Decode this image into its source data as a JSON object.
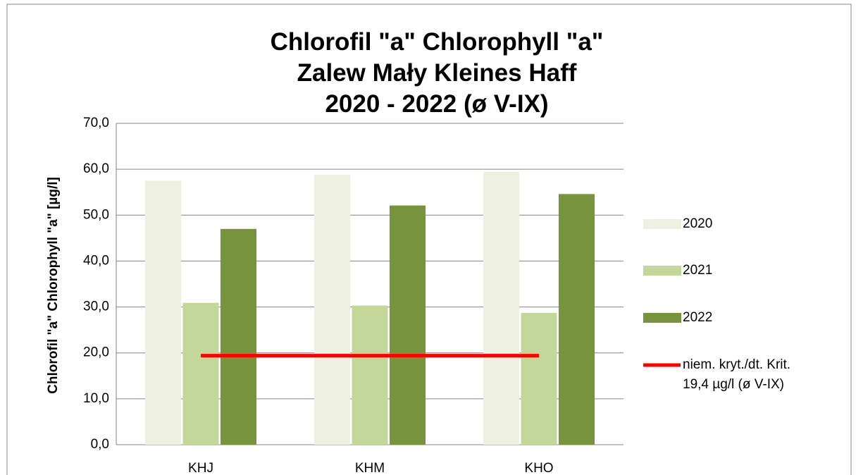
{
  "chart_data": {
    "type": "bar",
    "title": "Chlorofil \"a\"  Chlorophyll \"a\"\nZalew Mały  Kleines Haff\n2020 - 2022 (ø V-IX)",
    "y_label": "Chlorofil \"a\"  Chlorophyll \"a\" [µg/l]",
    "categories": [
      "KHJ",
      "KHM",
      "KHO"
    ],
    "series": [
      {
        "name": "2020",
        "color": "#eef0e2",
        "values": [
          57.5,
          58.8,
          59.4
        ]
      },
      {
        "name": "2021",
        "color": "#c4d79b",
        "values": [
          30.9,
          30.3,
          28.7
        ]
      },
      {
        "name": "2022",
        "color": "#77933c",
        "values": [
          47.0,
          52.1,
          54.6
        ]
      },
      {
        "name": "niem. kryt./dt. Krit.\n19,4 µg/l (ø V-IX)",
        "color": "#ff0000",
        "type": "line",
        "values": [
          19.4,
          19.4,
          19.4
        ]
      }
    ],
    "ylim": [
      0,
      70
    ],
    "yticks": [
      {
        "value": 0,
        "label": "0,0"
      },
      {
        "value": 10,
        "label": "10,0"
      },
      {
        "value": 20,
        "label": "20,0"
      },
      {
        "value": 30,
        "label": "30,0"
      },
      {
        "value": 40,
        "label": "40,0"
      },
      {
        "value": 50,
        "label": "50,0"
      },
      {
        "value": 60,
        "label": "60,0"
      },
      {
        "value": 70,
        "label": "70,0"
      }
    ],
    "grid": true,
    "legend": "right"
  }
}
